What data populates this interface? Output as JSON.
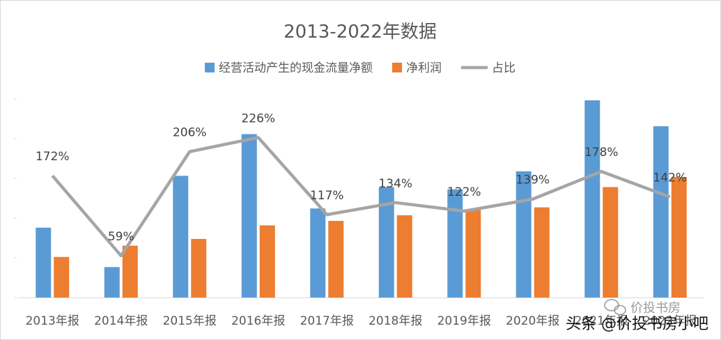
{
  "chart_data": {
    "type": "bar",
    "title": "2013-2022年数据",
    "categories": [
      "2013年报",
      "2014年报",
      "2015年报",
      "2016年报",
      "2017年报",
      "2018年报",
      "2019年报",
      "2020年报",
      "2021年报",
      "2022年报"
    ],
    "series": [
      {
        "name": "经营活动产生的现金流量净额",
        "type": "bar",
        "color": "#5b9bd5",
        "values": [
          62,
          27,
          108,
          145,
          79,
          98,
          96,
          112,
          175,
          152
        ]
      },
      {
        "name": "净利润",
        "type": "bar",
        "color": "#ed7d31",
        "values": [
          36,
          46,
          52,
          64,
          68,
          73,
          78,
          80,
          98,
          107
        ]
      },
      {
        "name": "占比",
        "type": "line",
        "color": "#a5a5a5",
        "values": [
          172,
          59,
          206,
          226,
          117,
          134,
          122,
          139,
          178,
          142
        ],
        "labels": [
          "172%",
          "59%",
          "206%",
          "226%",
          "117%",
          "134%",
          "122%",
          "139%",
          "178%",
          "142%"
        ]
      }
    ],
    "bar_ylim": [
      0,
      175
    ],
    "line_ylim": [
      0,
      308
    ],
    "legend_position": "top",
    "gridlines": false
  },
  "watermark": {
    "text": "头条 @价投书房小吧",
    "small_text": "价投书房"
  }
}
